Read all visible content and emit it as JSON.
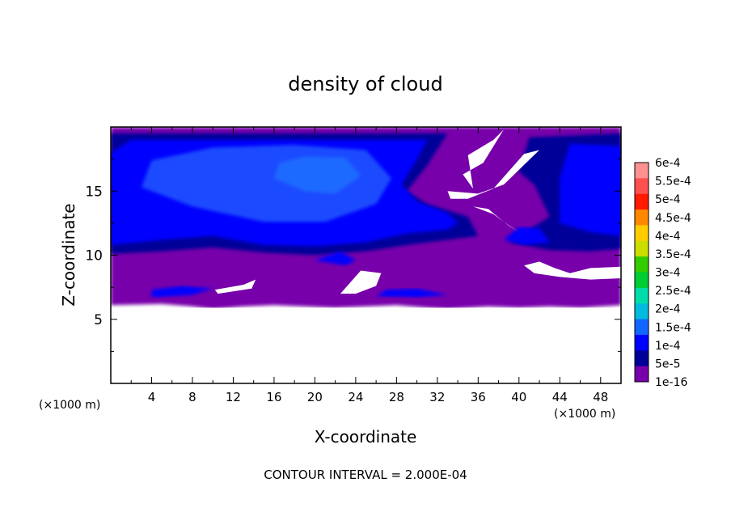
{
  "chart_data": {
    "type": "heatmap",
    "title": "density of cloud",
    "xlabel": "X-coordinate",
    "ylabel": "Z-coordinate",
    "x_unit": "(×1000 m)",
    "z_unit": "(×1000 m)",
    "xlim": [
      0,
      50
    ],
    "ylim": [
      0,
      20
    ],
    "x_ticks": [
      4,
      8,
      12,
      16,
      20,
      24,
      28,
      32,
      36,
      40,
      44,
      48
    ],
    "x_tick_labels": [
      "4",
      "8",
      "12",
      "16",
      "20",
      "24",
      "28",
      "32",
      "36",
      "40",
      "44",
      "48"
    ],
    "y_ticks": [
      5,
      10,
      15
    ],
    "y_tick_labels": [
      "5",
      "10",
      "15"
    ],
    "footer": "CONTOUR INTERVAL = 2.000E-04",
    "colorbar": {
      "labels": [
        "6e-4",
        "5.5e-4",
        "5e-4",
        "4.5e-4",
        "4e-4",
        "3.5e-4",
        "3e-4",
        "2.5e-4",
        "2e-4",
        "1.5e-4",
        "1e-4",
        "5e-5",
        "1e-16"
      ],
      "colors": [
        "#ff9090",
        "#ff5050",
        "#ff1a00",
        "#ff8800",
        "#ffcc00",
        "#ccdd00",
        "#33cc00",
        "#00cc33",
        "#00ddaa",
        "#00bbdd",
        "#1166ff",
        "#0000ff",
        "#000099",
        "#7700aa"
      ]
    },
    "regions": [
      {
        "level": "1e-16",
        "color": "#7700aa",
        "polygon": [
          [
            0,
            6.1
          ],
          [
            5,
            6.2
          ],
          [
            8,
            6.0
          ],
          [
            10,
            5.8
          ],
          [
            13,
            6.0
          ],
          [
            16,
            6.1
          ],
          [
            19,
            6.0
          ],
          [
            22,
            5.9
          ],
          [
            25,
            6.0
          ],
          [
            28,
            6.1
          ],
          [
            31,
            5.9
          ],
          [
            33,
            5.8
          ],
          [
            35,
            5.9
          ],
          [
            37,
            6.0
          ],
          [
            40,
            5.9
          ],
          [
            43,
            6.0
          ],
          [
            46,
            5.9
          ],
          [
            50,
            6.1
          ],
          [
            50,
            20
          ],
          [
            0,
            20
          ]
        ]
      },
      {
        "level": "5e-5",
        "color": "#000099",
        "polygon": [
          [
            0,
            10.1
          ],
          [
            5,
            10.3
          ],
          [
            10,
            10.6
          ],
          [
            15,
            10.2
          ],
          [
            20,
            10.0
          ],
          [
            25,
            10.3
          ],
          [
            30,
            10.9
          ],
          [
            34,
            11.3
          ],
          [
            36,
            11.5
          ],
          [
            35,
            13
          ],
          [
            31,
            14
          ],
          [
            29,
            15
          ],
          [
            31,
            17
          ],
          [
            33,
            19.5
          ],
          [
            0,
            19.5
          ]
        ]
      },
      {
        "level": "5e-5",
        "color": "#000099",
        "polygon": [
          [
            39,
            11.0
          ],
          [
            43,
            10.4
          ],
          [
            47,
            10.3
          ],
          [
            50,
            10.5
          ],
          [
            50,
            19.5
          ],
          [
            41,
            19.2
          ],
          [
            40,
            16.5
          ],
          [
            41.5,
            15.5
          ],
          [
            43,
            13
          ]
        ]
      },
      {
        "level": "1e-4",
        "color": "#0000ff",
        "polygon": [
          [
            0,
            10.8
          ],
          [
            5,
            11.2
          ],
          [
            10,
            11.5
          ],
          [
            15,
            10.8
          ],
          [
            20,
            10.7
          ],
          [
            25,
            11.0
          ],
          [
            29,
            11.7
          ],
          [
            33,
            12.0
          ],
          [
            34,
            12.5
          ],
          [
            33,
            13.3
          ],
          [
            30,
            14.2
          ],
          [
            28.5,
            15.5
          ],
          [
            30,
            17.5
          ],
          [
            31,
            19
          ],
          [
            2,
            19
          ],
          [
            0,
            18
          ]
        ]
      },
      {
        "level": "1e-4",
        "color": "#0000ff",
        "polygon": [
          [
            44,
            12.5
          ],
          [
            47,
            11.8
          ],
          [
            50,
            11.5
          ],
          [
            50,
            18.5
          ],
          [
            45,
            18.7
          ],
          [
            44,
            16
          ]
        ]
      },
      {
        "level": "1e-4",
        "color": "#0000ff",
        "polygon": [
          [
            38.5,
            11.2
          ],
          [
            40.5,
            10.8
          ],
          [
            43,
            11.0
          ],
          [
            42,
            12.1
          ],
          [
            40,
            12.2
          ]
        ]
      },
      {
        "level": "1e-4",
        "color": "#0000ff",
        "polygon": [
          [
            4,
            6.7
          ],
          [
            8,
            6.9
          ],
          [
            10,
            7.4
          ],
          [
            7,
            7.6
          ],
          [
            4,
            7.3
          ]
        ]
      },
      {
        "level": "1e-4",
        "color": "#0000ff",
        "polygon": [
          [
            26,
            6.8
          ],
          [
            30,
            6.7
          ],
          [
            33,
            6.9
          ],
          [
            30,
            7.4
          ],
          [
            27,
            7.3
          ]
        ]
      },
      {
        "level": "1e-4",
        "color": "#0000ff",
        "polygon": [
          [
            20,
            9.6
          ],
          [
            23,
            9.2
          ],
          [
            24,
            9.6
          ],
          [
            22.5,
            10.3
          ]
        ]
      },
      {
        "level": "1e-4 to 1.5e-4",
        "color": "#1a4cff",
        "polygon": [
          [
            3,
            15.3
          ],
          [
            8,
            13.8
          ],
          [
            15,
            12.6
          ],
          [
            21,
            12.6
          ],
          [
            26,
            14.0
          ],
          [
            27.5,
            16
          ],
          [
            25,
            18.2
          ],
          [
            18,
            18.6
          ],
          [
            10,
            18.4
          ],
          [
            4,
            17.4
          ]
        ]
      },
      {
        "level": "1.5e-4",
        "color": "#1b6bff",
        "polygon": [
          [
            16,
            16.0
          ],
          [
            19,
            15.0
          ],
          [
            22,
            14.8
          ],
          [
            24.5,
            16.2
          ],
          [
            23,
            17.6
          ],
          [
            19,
            17.7
          ],
          [
            16.5,
            17.2
          ]
        ]
      },
      {
        "level": "missing",
        "color": "#ffffff",
        "polygon": [
          [
            0,
            0
          ],
          [
            50,
            0
          ],
          [
            50,
            5.9
          ],
          [
            0,
            5.9
          ]
        ]
      },
      {
        "level": "missing",
        "color": "#ffffff",
        "polygon": [
          [
            35,
            17.8
          ],
          [
            37.5,
            19.0
          ],
          [
            38.5,
            19.8
          ],
          [
            36.5,
            17.2
          ],
          [
            34.5,
            16.3
          ],
          [
            35.5,
            15.2
          ]
        ]
      },
      {
        "level": "missing",
        "color": "#ffffff",
        "polygon": [
          [
            33,
            15.0
          ],
          [
            36,
            14.8
          ],
          [
            38.5,
            15.5
          ],
          [
            42,
            18.2
          ],
          [
            40.5,
            17.9
          ],
          [
            37.5,
            15.2
          ],
          [
            35,
            14.4
          ],
          [
            33.3,
            14.4
          ]
        ]
      },
      {
        "level": "missing",
        "color": "#ffffff",
        "polygon": [
          [
            35.5,
            13.8
          ],
          [
            37.5,
            13.2
          ],
          [
            39,
            12.3
          ],
          [
            40,
            11.8
          ],
          [
            38.5,
            12.6
          ],
          [
            37,
            13.6
          ]
        ]
      },
      {
        "level": "missing",
        "color": "#ffffff",
        "polygon": [
          [
            10.2,
            7.3
          ],
          [
            13,
            7.7
          ],
          [
            14.2,
            8.1
          ],
          [
            13.8,
            7.4
          ],
          [
            10.5,
            7.0
          ]
        ]
      },
      {
        "level": "missing",
        "color": "#ffffff",
        "polygon": [
          [
            22.5,
            7.0
          ],
          [
            24.5,
            8.8
          ],
          [
            26.5,
            8.6
          ],
          [
            26,
            7.6
          ],
          [
            24,
            7.0
          ]
        ]
      },
      {
        "level": "missing",
        "color": "#ffffff",
        "polygon": [
          [
            40.5,
            9.2
          ],
          [
            42,
            9.5
          ],
          [
            43.5,
            9.0
          ],
          [
            45,
            8.6
          ],
          [
            47,
            9.0
          ],
          [
            50,
            9.1
          ],
          [
            50,
            8.2
          ],
          [
            47,
            8.1
          ],
          [
            44,
            8.3
          ],
          [
            41.5,
            8.6
          ]
        ]
      }
    ]
  }
}
